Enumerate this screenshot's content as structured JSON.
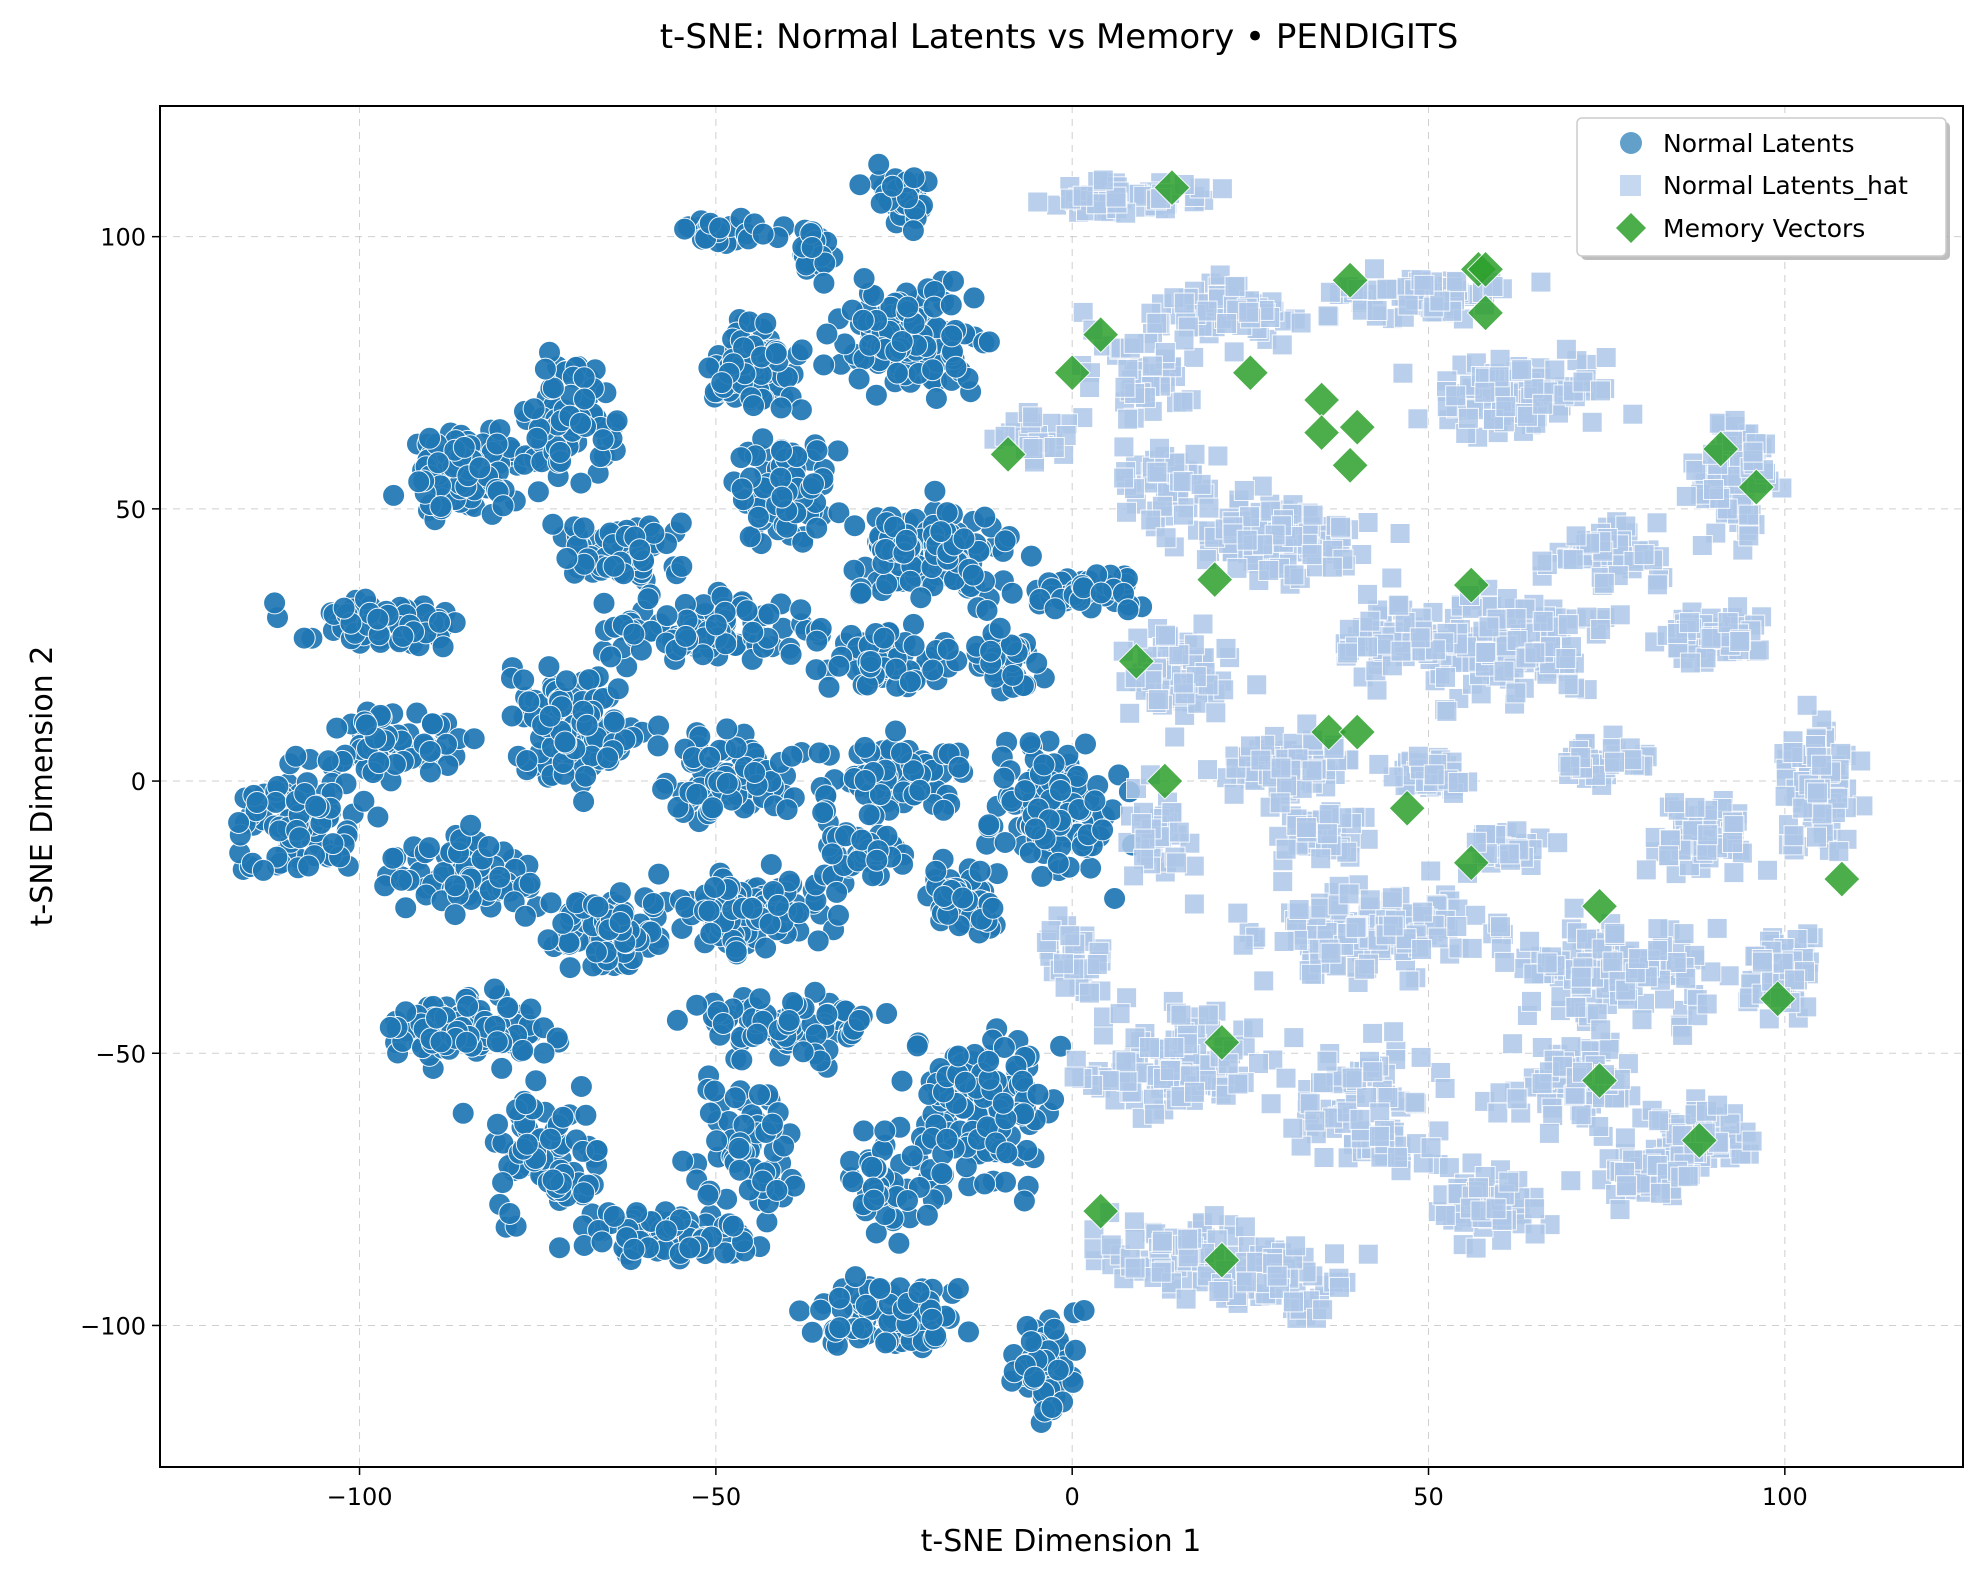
{
  "chart_data": {
    "type": "scatter",
    "title": "t-SNE: Normal Latents vs Memory • PENDIGITS",
    "xlabel": "t-SNE Dimension 1",
    "ylabel": "t-SNE Dimension 2",
    "xlim": [
      -128,
      125
    ],
    "ylim": [
      -126,
      124
    ],
    "xticks": [
      -100,
      -50,
      0,
      50,
      100
    ],
    "yticks": [
      -100,
      -50,
      0,
      50,
      100
    ],
    "xtick_labels": [
      "−100",
      "−50",
      "0",
      "50",
      "100"
    ],
    "ytick_labels": [
      "−100",
      "−50",
      "0",
      "50",
      "100"
    ],
    "grid": true,
    "legend_position": "top-right",
    "colors": {
      "normal": "#1f77b4",
      "normal_hat": "#aec7e8",
      "memory": "#2ca02c"
    },
    "series": [
      {
        "name": "Normal Latents",
        "marker": "circle",
        "clusters": [
          {
            "cx": -24,
            "cy": 107,
            "rx": 4,
            "ry": 5,
            "n": 40
          },
          {
            "cx": -48,
            "cy": 101,
            "rx": 6,
            "ry": 2,
            "n": 25
          },
          {
            "cx": -37,
            "cy": 97,
            "rx": 3,
            "ry": 4,
            "n": 20
          },
          {
            "cx": -22,
            "cy": 81,
            "rx": 9,
            "ry": 8,
            "n": 120
          },
          {
            "cx": -45,
            "cy": 76,
            "rx": 6,
            "ry": 7,
            "n": 80
          },
          {
            "cx": -41,
            "cy": 52,
            "rx": 6,
            "ry": 10,
            "n": 80
          },
          {
            "cx": -85,
            "cy": 57,
            "rx": 8,
            "ry": 7,
            "n": 110
          },
          {
            "cx": -70,
            "cy": 67,
            "rx": 5,
            "ry": 12,
            "n": 70
          },
          {
            "cx": -63,
            "cy": 42,
            "rx": 9,
            "ry": 6,
            "n": 60
          },
          {
            "cx": -20,
            "cy": 42,
            "rx": 10,
            "ry": 7,
            "n": 140
          },
          {
            "cx": -50,
            "cy": 28,
            "rx": 13,
            "ry": 5,
            "n": 110
          },
          {
            "cx": -97,
            "cy": 29,
            "rx": 11,
            "ry": 4,
            "n": 70
          },
          {
            "cx": -27,
            "cy": 22,
            "rx": 9,
            "ry": 5,
            "n": 70
          },
          {
            "cx": -10,
            "cy": 22,
            "rx": 5,
            "ry": 6,
            "n": 40
          },
          {
            "cx": 2,
            "cy": 35,
            "rx": 7,
            "ry": 3,
            "n": 45
          },
          {
            "cx": -70,
            "cy": 10,
            "rx": 8,
            "ry": 10,
            "n": 120
          },
          {
            "cx": -95,
            "cy": 7,
            "rx": 10,
            "ry": 6,
            "n": 70
          },
          {
            "cx": -109,
            "cy": -7,
            "rx": 8,
            "ry": 9,
            "n": 100
          },
          {
            "cx": -48,
            "cy": 1,
            "rx": 9,
            "ry": 7,
            "n": 80
          },
          {
            "cx": -25,
            "cy": 1,
            "rx": 9,
            "ry": 6,
            "n": 80
          },
          {
            "cx": -3,
            "cy": -5,
            "rx": 7,
            "ry": 10,
            "n": 130
          },
          {
            "cx": -85,
            "cy": -17,
            "rx": 9,
            "ry": 6,
            "n": 80
          },
          {
            "cx": -65,
            "cy": -27,
            "rx": 8,
            "ry": 7,
            "n": 90
          },
          {
            "cx": -45,
            "cy": -24,
            "rx": 9,
            "ry": 7,
            "n": 110
          },
          {
            "cx": -30,
            "cy": -12,
            "rx": 5,
            "ry": 6,
            "n": 40
          },
          {
            "cx": -15,
            "cy": -21,
            "rx": 5,
            "ry": 7,
            "n": 50
          },
          {
            "cx": -40,
            "cy": -45,
            "rx": 12,
            "ry": 5,
            "n": 90
          },
          {
            "cx": -84,
            "cy": -45,
            "rx": 9,
            "ry": 6,
            "n": 100
          },
          {
            "cx": -74,
            "cy": -70,
            "rx": 8,
            "ry": 10,
            "n": 80
          },
          {
            "cx": -57,
            "cy": -83,
            "rx": 11,
            "ry": 4,
            "n": 80
          },
          {
            "cx": -46,
            "cy": -67,
            "rx": 6,
            "ry": 10,
            "n": 70
          },
          {
            "cx": -13,
            "cy": -60,
            "rx": 9,
            "ry": 13,
            "n": 140
          },
          {
            "cx": -27,
            "cy": -75,
            "rx": 5,
            "ry": 8,
            "n": 40
          },
          {
            "cx": -25,
            "cy": -98,
            "rx": 9,
            "ry": 6,
            "n": 90
          },
          {
            "cx": -4,
            "cy": -107,
            "rx": 5,
            "ry": 8,
            "n": 60
          }
        ]
      },
      {
        "name": "Normal Latents_hat",
        "marker": "square",
        "clusters": [
          {
            "cx": 8,
            "cy": 107,
            "rx": 10,
            "ry": 3,
            "n": 60
          },
          {
            "cx": 22,
            "cy": 86,
            "rx": 8,
            "ry": 5,
            "n": 60
          },
          {
            "cx": 48,
            "cy": 89,
            "rx": 12,
            "ry": 4,
            "n": 70
          },
          {
            "cx": 10,
            "cy": 75,
            "rx": 7,
            "ry": 9,
            "n": 50
          },
          {
            "cx": 63,
            "cy": 71,
            "rx": 12,
            "ry": 6,
            "n": 90
          },
          {
            "cx": -5,
            "cy": 63,
            "rx": 5,
            "ry": 5,
            "n": 30
          },
          {
            "cx": 13,
            "cy": 55,
            "rx": 6,
            "ry": 7,
            "n": 50
          },
          {
            "cx": 93,
            "cy": 55,
            "rx": 5,
            "ry": 10,
            "n": 80
          },
          {
            "cx": 30,
            "cy": 45,
            "rx": 12,
            "ry": 8,
            "n": 110
          },
          {
            "cx": 75,
            "cy": 42,
            "rx": 8,
            "ry": 5,
            "n": 60
          },
          {
            "cx": 62,
            "cy": 25,
            "rx": 11,
            "ry": 9,
            "n": 120
          },
          {
            "cx": 45,
            "cy": 25,
            "rx": 7,
            "ry": 6,
            "n": 60
          },
          {
            "cx": 15,
            "cy": 20,
            "rx": 7,
            "ry": 8,
            "n": 70
          },
          {
            "cx": 90,
            "cy": 26,
            "rx": 7,
            "ry": 5,
            "n": 60
          },
          {
            "cx": 30,
            "cy": 3,
            "rx": 8,
            "ry": 5,
            "n": 60
          },
          {
            "cx": 50,
            "cy": 1,
            "rx": 6,
            "ry": 4,
            "n": 40
          },
          {
            "cx": 75,
            "cy": 4,
            "rx": 6,
            "ry": 4,
            "n": 40
          },
          {
            "cx": 105,
            "cy": -2,
            "rx": 5,
            "ry": 11,
            "n": 80
          },
          {
            "cx": 12,
            "cy": -10,
            "rx": 4,
            "ry": 10,
            "n": 40
          },
          {
            "cx": 35,
            "cy": -9,
            "rx": 6,
            "ry": 5,
            "n": 40
          },
          {
            "cx": 62,
            "cy": -13,
            "rx": 5,
            "ry": 4,
            "n": 30
          },
          {
            "cx": 88,
            "cy": -10,
            "rx": 7,
            "ry": 6,
            "n": 60
          },
          {
            "cx": 42,
            "cy": -28,
            "rx": 15,
            "ry": 7,
            "n": 140
          },
          {
            "cx": 77,
            "cy": -35,
            "rx": 13,
            "ry": 8,
            "n": 120
          },
          {
            "cx": 100,
            "cy": -35,
            "rx": 5,
            "ry": 8,
            "n": 50
          },
          {
            "cx": 15,
            "cy": -52,
            "rx": 13,
            "ry": 9,
            "n": 110
          },
          {
            "cx": 42,
            "cy": -60,
            "rx": 10,
            "ry": 11,
            "n": 100
          },
          {
            "cx": 70,
            "cy": -55,
            "rx": 8,
            "ry": 8,
            "n": 80
          },
          {
            "cx": 88,
            "cy": -65,
            "rx": 8,
            "ry": 5,
            "n": 60
          },
          {
            "cx": 58,
            "cy": -78,
            "rx": 8,
            "ry": 6,
            "n": 60
          },
          {
            "cx": 80,
            "cy": -73,
            "rx": 6,
            "ry": 4,
            "n": 40
          },
          {
            "cx": 15,
            "cy": -87,
            "rx": 10,
            "ry": 6,
            "n": 70
          },
          {
            "cx": 30,
            "cy": -92,
            "rx": 9,
            "ry": 6,
            "n": 60
          },
          {
            "cx": 0,
            "cy": -33,
            "rx": 4,
            "ry": 7,
            "n": 30
          }
        ]
      },
      {
        "name": "Memory Vectors",
        "marker": "diamond",
        "points": [
          {
            "x": 14,
            "y": 109
          },
          {
            "x": 4,
            "y": 82
          },
          {
            "x": 0,
            "y": 75
          },
          {
            "x": 25,
            "y": 75
          },
          {
            "x": 39,
            "y": 92
          },
          {
            "x": 57,
            "y": 94
          },
          {
            "x": 58,
            "y": 94
          },
          {
            "x": 58,
            "y": 86
          },
          {
            "x": 35,
            "y": 70
          },
          {
            "x": 35,
            "y": 64
          },
          {
            "x": 40,
            "y": 65
          },
          {
            "x": 39,
            "y": 58
          },
          {
            "x": -9,
            "y": 60
          },
          {
            "x": 91,
            "y": 61
          },
          {
            "x": 96,
            "y": 54
          },
          {
            "x": 20,
            "y": 37
          },
          {
            "x": 56,
            "y": 36
          },
          {
            "x": 9,
            "y": 22
          },
          {
            "x": 36,
            "y": 9
          },
          {
            "x": 40,
            "y": 9
          },
          {
            "x": 13,
            "y": 0
          },
          {
            "x": 47,
            "y": -5
          },
          {
            "x": 56,
            "y": -15
          },
          {
            "x": 74,
            "y": -23
          },
          {
            "x": 108,
            "y": -18
          },
          {
            "x": 99,
            "y": -40
          },
          {
            "x": 21,
            "y": -48
          },
          {
            "x": 74,
            "y": -55
          },
          {
            "x": 88,
            "y": -66
          },
          {
            "x": 4,
            "y": -79
          },
          {
            "x": 21,
            "y": -88
          }
        ]
      }
    ]
  }
}
